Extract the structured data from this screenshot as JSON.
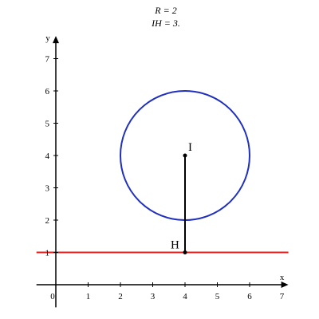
{
  "caption": {
    "line1": "R = 2",
    "line2": "IH = 3."
  },
  "axes": {
    "x_name": "x",
    "y_name": "y",
    "x_ticks": [
      "1",
      "2",
      "3",
      "4",
      "5",
      "6",
      "7"
    ],
    "y_ticks": [
      "1",
      "2",
      "3",
      "4",
      "5",
      "6",
      "7"
    ],
    "origin_label": "0",
    "xlim": [
      -0.6,
      7.2
    ],
    "ylim": [
      -0.7,
      7.7
    ]
  },
  "circle": {
    "center": [
      4,
      4
    ],
    "radius": 2,
    "color": "#1f2fbf"
  },
  "line_y1": {
    "y": 1,
    "color": "#e0201e"
  },
  "segment": {
    "from": [
      4,
      4
    ],
    "to": [
      4,
      1
    ],
    "color": "#000000"
  },
  "points": {
    "I": {
      "label": "I",
      "x": 4,
      "y": 4
    },
    "H": {
      "label": "H",
      "x": 4,
      "y": 1
    }
  }
}
